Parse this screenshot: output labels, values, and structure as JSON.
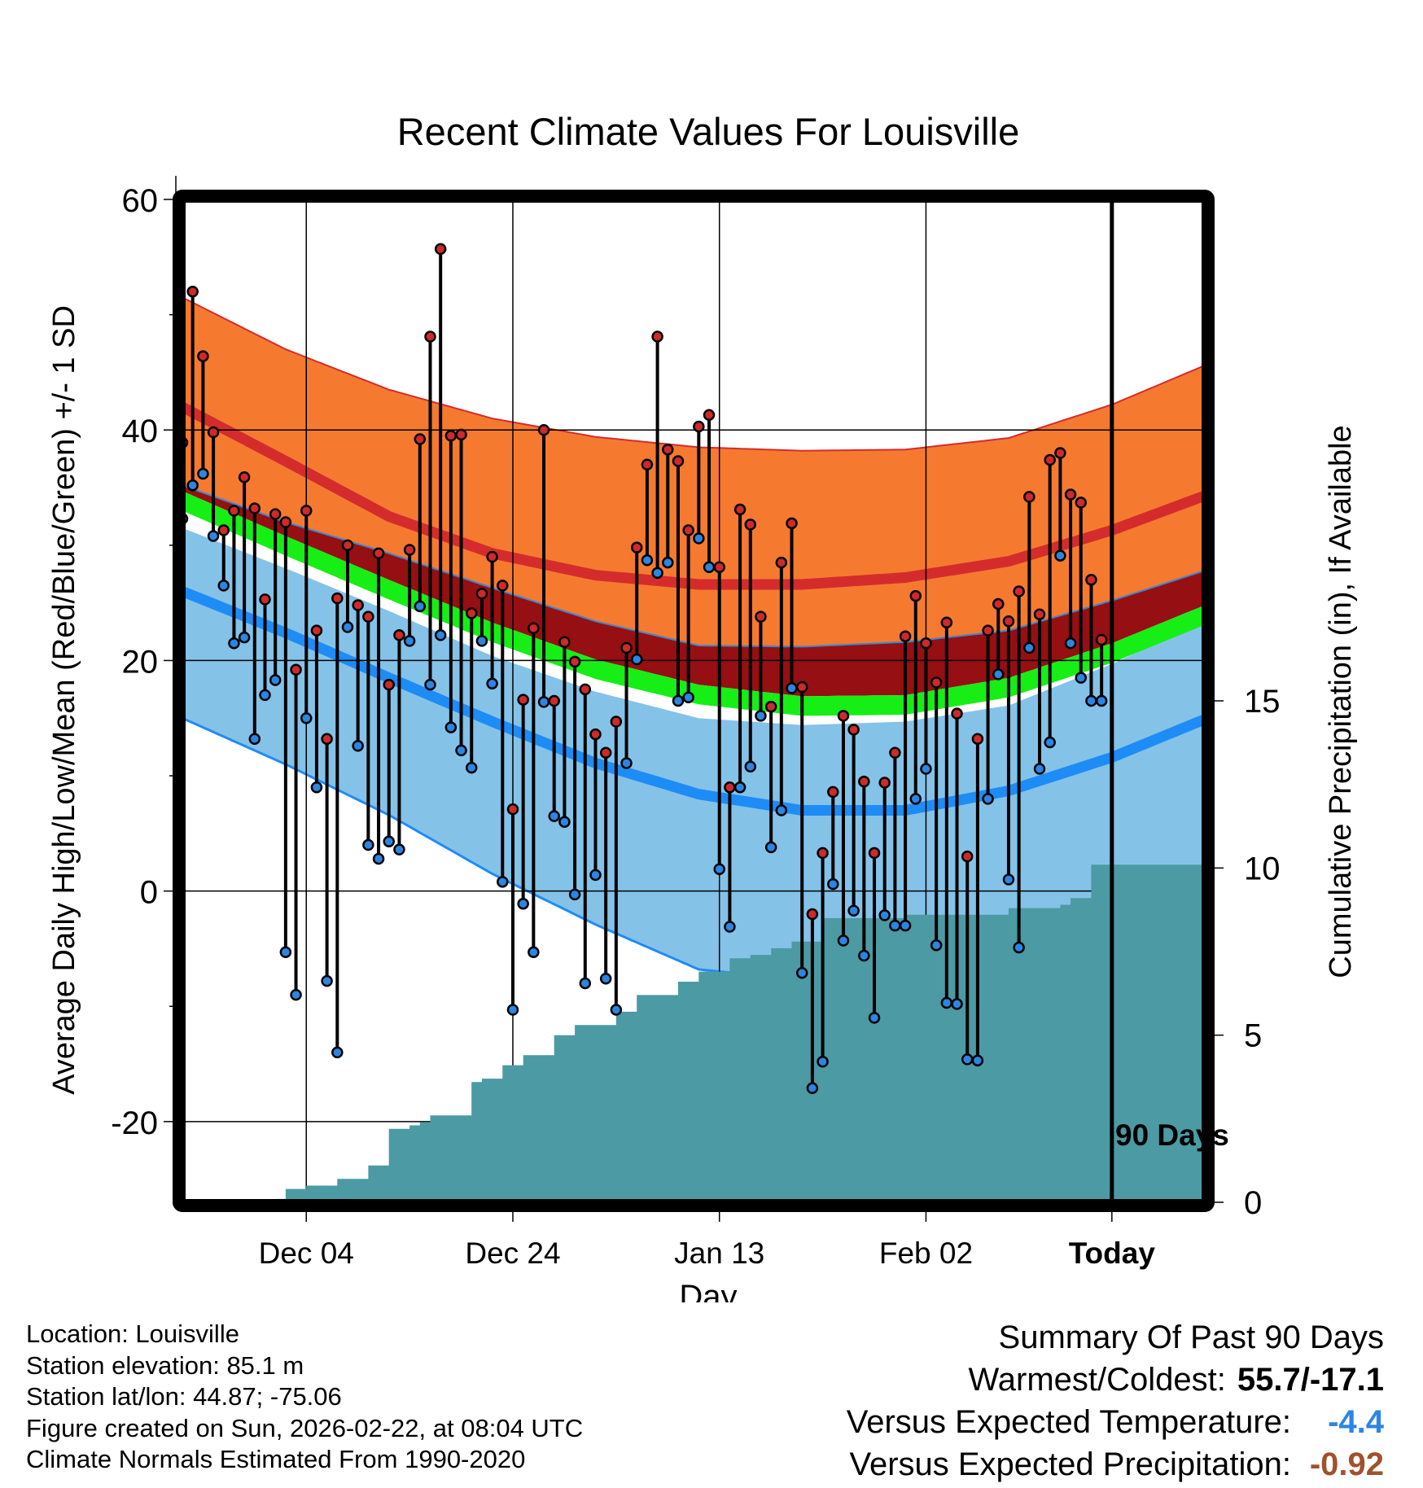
{
  "chart_data": {
    "type": "line",
    "title": "Recent Climate Values For Louisville",
    "xlabel": "Day",
    "ylabel": "Average Daily High/Low/Mean (Red/Blue/Green) +/- 1 SD",
    "y2label": "Cumulative Precipitation (in), If Available",
    "ylim": [
      -27,
      60
    ],
    "y2lim": [
      0,
      30
    ],
    "y_ticks": [
      -20,
      0,
      20,
      40,
      60
    ],
    "y_tick_labels": [
      "-20",
      "0",
      "20",
      "40",
      "60"
    ],
    "y2_ticks": [
      0,
      5,
      10,
      15
    ],
    "y2_tick_labels": [
      "0",
      "5",
      "10",
      "15"
    ],
    "x_range": [
      -90,
      9
    ],
    "x_ticks": [
      -78,
      -58,
      -38,
      -18,
      0
    ],
    "x_tick_labels": [
      "Dec 04",
      "Dec 24",
      "Jan 13",
      "Feb 02",
      "Today"
    ],
    "today_marker_label": "90 Days",
    "grid": true,
    "normals": {
      "days": [
        -90,
        -80,
        -70,
        -60,
        -50,
        -40,
        -30,
        -20,
        -10,
        0,
        9
      ],
      "high_upper": [
        51.5,
        47.0,
        43.5,
        41.0,
        39.4,
        38.5,
        38.2,
        38.3,
        39.3,
        42.2,
        45.6
      ],
      "high_mean": [
        42.0,
        37.3,
        32.5,
        29.3,
        27.4,
        26.6,
        26.6,
        27.2,
        28.6,
        31.3,
        34.3
      ],
      "high_lower": [
        35.2,
        32.0,
        29.3,
        26.3,
        23.4,
        21.3,
        21.2,
        21.6,
        22.6,
        25.2,
        27.8
      ],
      "mean_upper": [
        34.7,
        30.8,
        27.0,
        23.3,
        20.1,
        17.9,
        16.9,
        17.0,
        18.5,
        21.5,
        24.8
      ],
      "mean_lower": [
        33.0,
        29.1,
        25.3,
        21.6,
        18.4,
        16.2,
        15.2,
        15.3,
        16.8,
        19.8,
        23.1
      ],
      "low_upper": [
        31.5,
        28.0,
        24.3,
        20.4,
        17.3,
        15.0,
        14.4,
        14.7,
        16.1,
        19.7,
        23.4
      ],
      "low_mean": [
        26.0,
        22.4,
        18.5,
        14.7,
        11.1,
        8.4,
        7.0,
        7.0,
        8.7,
        11.6,
        14.9
      ],
      "low_lower": [
        15.0,
        11.0,
        6.6,
        1.5,
        -2.9,
        -6.8,
        -7.7,
        -6.8,
        -4.5,
        -1.8,
        1.2
      ]
    },
    "series": [
      {
        "name": "Daily High",
        "color": "#cf2a2a",
        "values": [
          38.9,
          52.0,
          46.4,
          39.8,
          31.3,
          33.0,
          35.9,
          33.2,
          25.3,
          32.7,
          32.0,
          19.2,
          33.0,
          22.6,
          13.2,
          25.4,
          30.0,
          24.8,
          23.8,
          29.3,
          17.9,
          22.2,
          29.6,
          39.2,
          48.1,
          55.7,
          39.5,
          39.6,
          24.1,
          25.8,
          29.0,
          26.5,
          7.1,
          16.6,
          22.8,
          40.0,
          16.5,
          21.6,
          19.9,
          17.5,
          13.6,
          12.0,
          14.7,
          21.1,
          29.8,
          37.0,
          48.1,
          38.3,
          37.3,
          31.3,
          40.3,
          41.3,
          28.1,
          9.0,
          33.1,
          31.8,
          23.8,
          16.0,
          28.5,
          31.9,
          17.7,
          -2.0,
          3.3,
          8.6,
          15.2,
          14.0,
          9.5,
          3.3,
          9.4,
          12.0,
          22.1,
          25.6,
          21.5,
          18.1,
          23.3,
          15.4,
          3.0,
          13.2,
          22.6,
          24.9,
          23.4,
          26.0,
          34.2,
          24.0,
          37.4,
          38.0,
          34.4,
          33.7,
          27.0,
          21.8
        ]
      },
      {
        "name": "Daily Low",
        "color": "#2b86e3",
        "values": [
          32.3,
          35.2,
          36.2,
          30.8,
          26.5,
          21.5,
          22.0,
          13.2,
          17.0,
          18.3,
          -5.3,
          -9.0,
          15.0,
          9.0,
          -7.8,
          -14.0,
          22.9,
          12.6,
          4.0,
          2.8,
          4.3,
          3.6,
          21.7,
          24.7,
          17.9,
          22.2,
          14.2,
          12.2,
          10.7,
          21.7,
          18.0,
          0.8,
          -10.3,
          -1.1,
          -5.3,
          16.4,
          6.5,
          6.0,
          -0.3,
          -8.0,
          1.4,
          -7.6,
          -10.3,
          11.1,
          20.1,
          28.7,
          27.6,
          28.5,
          16.5,
          16.8,
          30.6,
          28.1,
          1.9,
          -3.1,
          9.0,
          10.8,
          15.2,
          3.8,
          7.0,
          17.6,
          -7.1,
          -17.1,
          -14.8,
          0.6,
          -4.3,
          -1.7,
          -5.6,
          -11.0,
          -2.1,
          -3.0,
          -3.0,
          8.0,
          10.6,
          -4.7,
          -9.7,
          -9.8,
          -14.6,
          -14.7,
          8.0,
          18.8,
          1.0,
          -4.9,
          21.1,
          10.6,
          12.9,
          29.1,
          21.5,
          18.5,
          16.5,
          16.5
        ]
      }
    ],
    "precipitation": {
      "days": [
        -90,
        -84,
        -81,
        -80,
        -78,
        -75,
        -72,
        -70,
        -68,
        -67,
        -66,
        -62,
        -61,
        -59,
        -57,
        -54,
        -52,
        -48,
        -46,
        -42,
        -40,
        -37,
        -35,
        -33,
        -31,
        -28,
        -20,
        -10,
        -5,
        -4,
        -2,
        9
      ],
      "values": [
        0,
        0,
        0.1,
        0.4,
        0.5,
        0.7,
        1.1,
        2.2,
        2.3,
        2.4,
        2.6,
        3.6,
        3.7,
        4.1,
        4.4,
        5.0,
        5.3,
        5.7,
        6.2,
        6.6,
        6.9,
        7.3,
        7.4,
        7.6,
        7.8,
        8.5,
        8.6,
        8.8,
        8.9,
        9.1,
        10.1,
        10.1
      ]
    },
    "colors": {
      "high_band": "#f57a30",
      "high_line": "#d42c2c",
      "mean_upper_fill": "#960f12",
      "mean_band": "#16ee16",
      "low_band": "#85c2e8",
      "low_line": "#1e8cf5",
      "precip": "#4c9aa3",
      "frame": "#000000"
    }
  },
  "info": [
    "Location: Louisville",
    "Station elevation: 85.1 m",
    "Station lat/lon: 44.87; -75.06",
    "Figure created on Sun, 2026-02-22, at 08:04 UTC",
    "Climate Normals Estimated From 1990-2020"
  ],
  "summary": {
    "title": "Summary Of Past 90 Days",
    "warm_cold_label": "Warmest/Coldest:",
    "warm_cold_value": "55.7/-17.1",
    "temp_label": "Versus Expected Temperature:",
    "temp_value": "-4.4",
    "temp_color": "#2b86e3",
    "precip_label": "Versus Expected Precipitation:",
    "precip_value": "-0.92",
    "precip_color": "#a0522d"
  }
}
